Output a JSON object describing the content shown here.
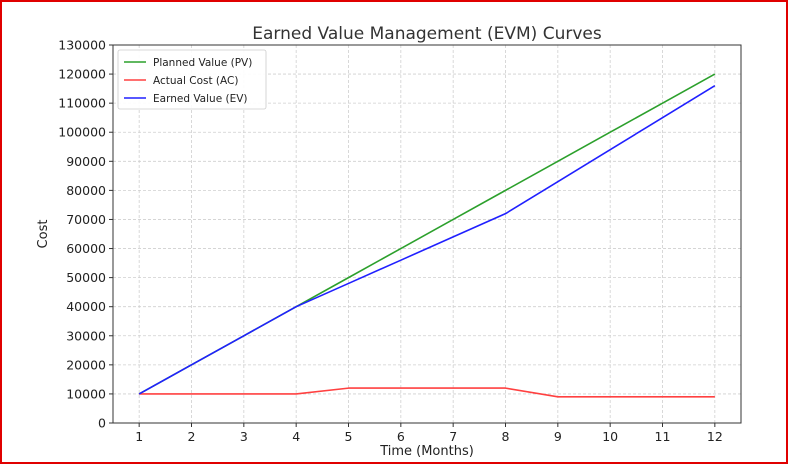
{
  "chart_data": {
    "type": "line",
    "title": "Earned Value Management (EVM) Curves",
    "xlabel": "Time (Months)",
    "ylabel": "Cost",
    "x": [
      1,
      2,
      3,
      4,
      5,
      6,
      7,
      8,
      9,
      10,
      11,
      12
    ],
    "xlim": [
      0.5,
      12.5
    ],
    "ylim": [
      0,
      130000
    ],
    "yticks": [
      0,
      10000,
      20000,
      30000,
      40000,
      50000,
      60000,
      70000,
      80000,
      90000,
      100000,
      110000,
      120000,
      130000
    ],
    "grid": true,
    "legend_position": "top-left",
    "series": [
      {
        "name": "Planned Value (PV)",
        "color": "#2ca02c",
        "values": [
          10000,
          20000,
          30000,
          40000,
          50000,
          60000,
          70000,
          80000,
          90000,
          100000,
          110000,
          120000
        ]
      },
      {
        "name": "Actual Cost (AC)",
        "color": "#ff4040",
        "values": [
          10000,
          10000,
          10000,
          10000,
          12000,
          12000,
          12000,
          12000,
          9000,
          9000,
          9000,
          9000
        ]
      },
      {
        "name": "Earned Value (EV)",
        "color": "#2020ff",
        "values": [
          10000,
          20000,
          30000,
          40000,
          48000,
          56000,
          64000,
          72000,
          83000,
          94000,
          105000,
          116000
        ]
      }
    ]
  }
}
